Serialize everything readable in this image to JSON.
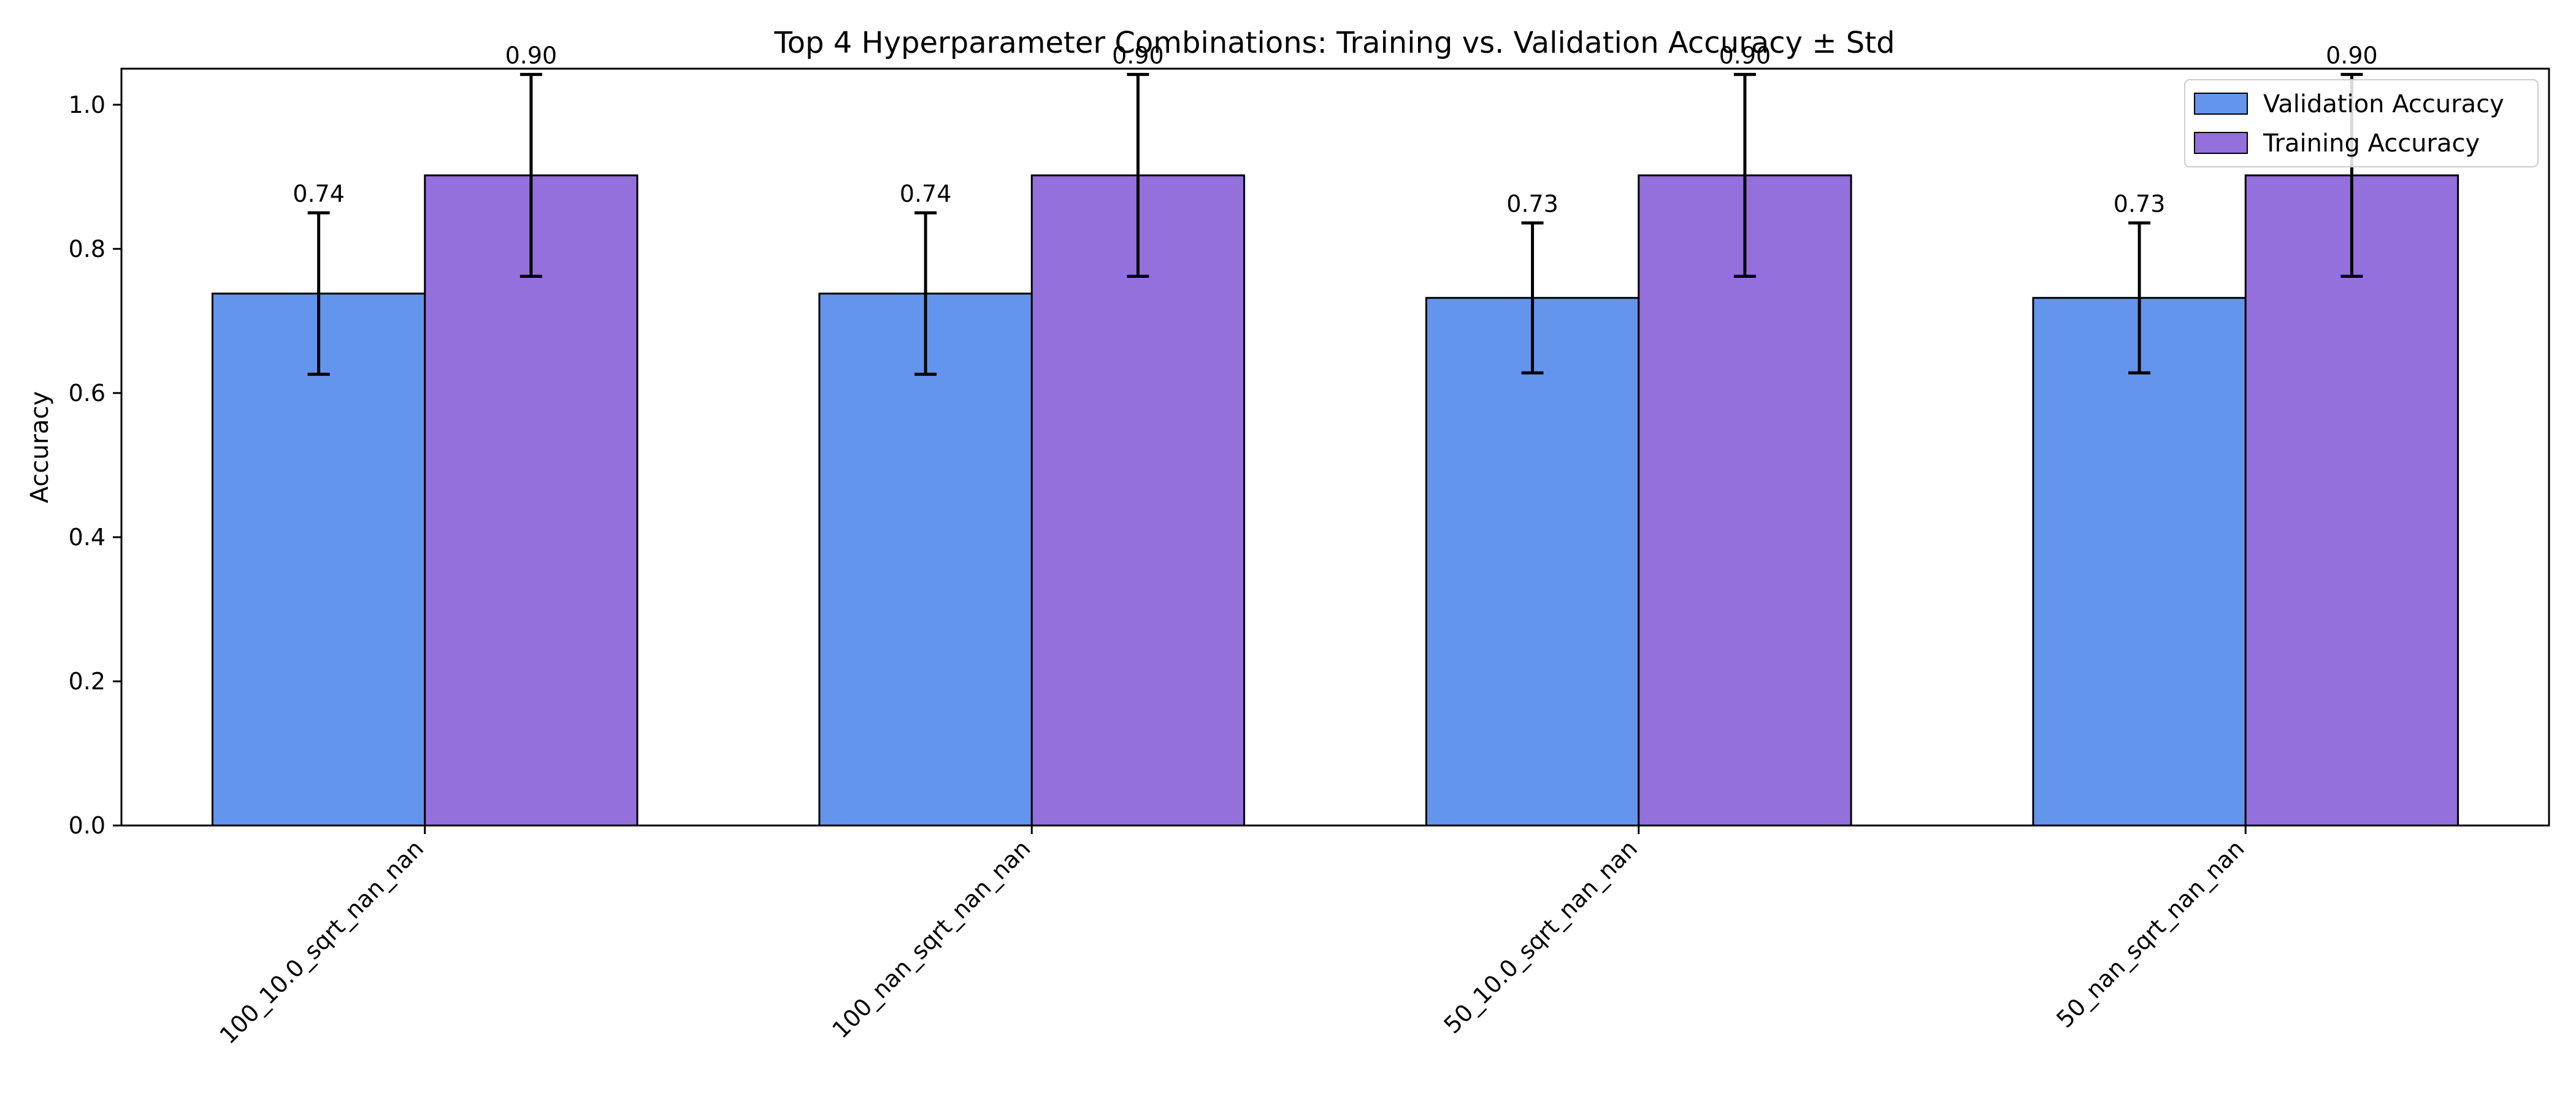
{
  "chart_data": {
    "type": "bar",
    "title": "Top 4 Hyperparameter Combinations: Training vs. Validation Accuracy ± Std",
    "xlabel": "",
    "ylabel": "Accuracy",
    "categories": [
      "100_10.0_sqrt_nan_nan",
      "100_nan_sqrt_nan_nan",
      "50_10.0_sqrt_nan_nan",
      "50_nan_sqrt_nan_nan"
    ],
    "series": [
      {
        "name": "Validation Accuracy",
        "color": "#6495ED",
        "values": [
          0.738,
          0.738,
          0.732,
          0.732
        ],
        "std": [
          0.112,
          0.112,
          0.104,
          0.104
        ],
        "labels": [
          "0.74",
          "0.74",
          "0.73",
          "0.73"
        ]
      },
      {
        "name": "Training Accuracy",
        "color": "#9370DB",
        "values": [
          0.902,
          0.902,
          0.902,
          0.902
        ],
        "std": [
          0.14,
          0.14,
          0.14,
          0.14
        ],
        "labels": [
          "0.90",
          "0.90",
          "0.90",
          "0.90"
        ]
      }
    ],
    "ylim": [
      0,
      1.05
    ],
    "yticks": [
      0.0,
      0.2,
      0.4,
      0.6,
      0.8,
      1.0
    ],
    "ytick_labels": [
      "0.0",
      "0.2",
      "0.4",
      "0.6",
      "0.8",
      "1.0"
    ],
    "legend_position": "top-right",
    "grid": false,
    "error_bars": true
  }
}
